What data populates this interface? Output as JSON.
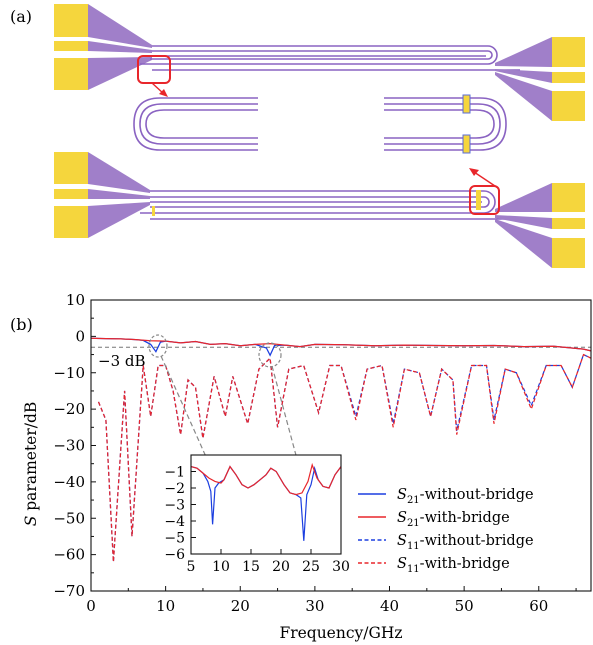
{
  "panel_a": {
    "label": "(a)",
    "colors": {
      "pad": "#f5d63d",
      "taper": "#a07fc9",
      "line": "#8a63c2",
      "highlight": "#e8262b"
    }
  },
  "panel_b": {
    "label": "(b)",
    "annotation": "−3 dB",
    "xlabel": "Frequency/GHz",
    "ylabel": "S parameter/dB",
    "legend": [
      {
        "sub": "21",
        "text": "-without-bridge",
        "color": "#1b3ee0",
        "dash": false
      },
      {
        "sub": "21",
        "text": "-with-bridge",
        "color": "#e8262b",
        "dash": false
      },
      {
        "sub": "11",
        "text": "-without-bridge",
        "color": "#1b3ee0",
        "dash": true
      },
      {
        "sub": "11",
        "text": "-with-bridge",
        "color": "#e8262b",
        "dash": true
      }
    ]
  },
  "chart_data": [
    {
      "type": "line",
      "xlabel": "Frequency/GHz",
      "ylabel": "S parameter/dB",
      "xlim": [
        0,
        67
      ],
      "ylim": [
        -70,
        10
      ],
      "xticks": [
        0,
        10,
        20,
        30,
        40,
        50,
        60
      ],
      "yticks": [
        10,
        0,
        -10,
        -20,
        -30,
        -40,
        -50,
        -60,
        -70
      ],
      "reference_line_db": -3,
      "series": [
        {
          "name": "S21-without-bridge",
          "color": "#1b3ee0",
          "style": "solid",
          "points": [
            [
              0,
              -0.5
            ],
            [
              2,
              -0.6
            ],
            [
              4,
              -0.7
            ],
            [
              6,
              -0.9
            ],
            [
              7,
              -1.1
            ],
            [
              8,
              -2.2
            ],
            [
              8.7,
              -4.2
            ],
            [
              9.3,
              -1.6
            ],
            [
              10,
              -1.3
            ],
            [
              12,
              -1.8
            ],
            [
              14,
              -1.4
            ],
            [
              16,
              -2.2
            ],
            [
              18,
              -2.0
            ],
            [
              20,
              -2.6
            ],
            [
              22,
              -2.2
            ],
            [
              23.5,
              -3.2
            ],
            [
              24,
              -5.2
            ],
            [
              24.6,
              -2.5
            ],
            [
              26,
              -2.4
            ],
            [
              28,
              -2.8
            ],
            [
              30,
              -2.2
            ],
            [
              34,
              -2.3
            ],
            [
              38,
              -2.6
            ],
            [
              42,
              -2.4
            ],
            [
              46,
              -2.5
            ],
            [
              50,
              -2.6
            ],
            [
              54,
              -2.5
            ],
            [
              58,
              -2.8
            ],
            [
              62,
              -2.7
            ],
            [
              66,
              -3.5
            ],
            [
              67,
              -4.0
            ]
          ]
        },
        {
          "name": "S21-with-bridge",
          "color": "#e8262b",
          "style": "solid",
          "points": [
            [
              0,
              -0.5
            ],
            [
              2,
              -0.6
            ],
            [
              4,
              -0.7
            ],
            [
              6,
              -0.9
            ],
            [
              8,
              -1.2
            ],
            [
              10,
              -1.3
            ],
            [
              12,
              -1.8
            ],
            [
              14,
              -1.4
            ],
            [
              16,
              -2.2
            ],
            [
              18,
              -2.0
            ],
            [
              20,
              -2.6
            ],
            [
              22,
              -2.2
            ],
            [
              24,
              -2.0
            ],
            [
              26,
              -2.4
            ],
            [
              28,
              -2.8
            ],
            [
              30,
              -2.2
            ],
            [
              34,
              -2.3
            ],
            [
              38,
              -2.6
            ],
            [
              42,
              -2.4
            ],
            [
              46,
              -2.5
            ],
            [
              50,
              -2.6
            ],
            [
              54,
              -2.5
            ],
            [
              58,
              -2.8
            ],
            [
              62,
              -2.7
            ],
            [
              66,
              -3.5
            ],
            [
              67,
              -4.0
            ]
          ]
        },
        {
          "name": "S11-without-bridge",
          "color": "#1b3ee0",
          "style": "dashed",
          "points": [
            [
              1,
              -18
            ],
            [
              2,
              -23
            ],
            [
              3,
              -62
            ],
            [
              4.5,
              -15
            ],
            [
              5.5,
              -55
            ],
            [
              7,
              -8
            ],
            [
              8,
              -22
            ],
            [
              9,
              -8
            ],
            [
              10,
              -8
            ],
            [
              11,
              -15
            ],
            [
              12,
              -27
            ],
            [
              13,
              -12
            ],
            [
              14,
              -14
            ],
            [
              15,
              -28
            ],
            [
              16.5,
              -11
            ],
            [
              18,
              -22
            ],
            [
              19,
              -11
            ],
            [
              21,
              -24
            ],
            [
              22.5,
              -9
            ],
            [
              24,
              -6
            ],
            [
              25,
              -25
            ],
            [
              26.5,
              -9
            ],
            [
              28.5,
              -8
            ],
            [
              30.5,
              -21
            ],
            [
              32,
              -8
            ],
            [
              33.5,
              -8
            ],
            [
              35.5,
              -22
            ],
            [
              37,
              -9
            ],
            [
              39,
              -8
            ],
            [
              40.5,
              -24
            ],
            [
              42,
              -9
            ],
            [
              44,
              -10
            ],
            [
              45.5,
              -22
            ],
            [
              47,
              -9
            ],
            [
              48.5,
              -12
            ],
            [
              49,
              -26
            ],
            [
              51,
              -8
            ],
            [
              53,
              -8
            ],
            [
              54,
              -23
            ],
            [
              55.5,
              -9
            ],
            [
              57,
              -10
            ],
            [
              59,
              -19
            ],
            [
              61,
              -8
            ],
            [
              63,
              -8
            ],
            [
              64.5,
              -14
            ],
            [
              66,
              -5
            ],
            [
              67,
              -6
            ]
          ]
        },
        {
          "name": "S11-with-bridge",
          "color": "#e8262b",
          "style": "dashed",
          "points": [
            [
              1,
              -18
            ],
            [
              2,
              -23
            ],
            [
              3,
              -62
            ],
            [
              4.5,
              -15
            ],
            [
              5.5,
              -55
            ],
            [
              7,
              -8
            ],
            [
              8,
              -22
            ],
            [
              9,
              -8
            ],
            [
              10,
              -8
            ],
            [
              11,
              -15
            ],
            [
              12,
              -27
            ],
            [
              13,
              -12
            ],
            [
              14,
              -14
            ],
            [
              15,
              -28
            ],
            [
              16.5,
              -11
            ],
            [
              18,
              -22
            ],
            [
              19,
              -11
            ],
            [
              21,
              -24
            ],
            [
              22.5,
              -9
            ],
            [
              24,
              -6
            ],
            [
              25,
              -25
            ],
            [
              26.5,
              -9
            ],
            [
              28.5,
              -8
            ],
            [
              30.5,
              -21
            ],
            [
              32,
              -8
            ],
            [
              33.5,
              -8
            ],
            [
              35.5,
              -23
            ],
            [
              37,
              -9
            ],
            [
              39,
              -8
            ],
            [
              40.5,
              -25
            ],
            [
              42,
              -9
            ],
            [
              44,
              -10
            ],
            [
              45.5,
              -22
            ],
            [
              47,
              -9
            ],
            [
              48.5,
              -12
            ],
            [
              49,
              -27
            ],
            [
              51,
              -8
            ],
            [
              53,
              -8
            ],
            [
              54,
              -24
            ],
            [
              55.5,
              -9
            ],
            [
              57,
              -10
            ],
            [
              59,
              -20
            ],
            [
              61,
              -8
            ],
            [
              63,
              -8
            ],
            [
              64.5,
              -14
            ],
            [
              66,
              -5
            ],
            [
              67,
              -6
            ]
          ]
        }
      ]
    },
    {
      "type": "line",
      "role": "inset",
      "xlim": [
        5,
        30
      ],
      "ylim": [
        -6,
        0
      ],
      "xticks": [
        5,
        10,
        15,
        20,
        25,
        30
      ],
      "yticks": [
        -1,
        -2,
        -3,
        -4,
        -5,
        -6
      ],
      "series": [
        {
          "name": "S21-without-bridge",
          "color": "#1b3ee0",
          "style": "solid",
          "points": [
            [
              5,
              -0.7
            ],
            [
              6,
              -0.8
            ],
            [
              7,
              -1.1
            ],
            [
              7.8,
              -1.6
            ],
            [
              8.3,
              -2.2
            ],
            [
              8.6,
              -4.2
            ],
            [
              9.0,
              -2.0
            ],
            [
              9.6,
              -1.7
            ],
            [
              10.5,
              -1.5
            ],
            [
              11.5,
              -0.7
            ],
            [
              12.5,
              -1.2
            ],
            [
              13.5,
              -1.8
            ],
            [
              14.5,
              -2.0
            ],
            [
              15.5,
              -1.8
            ],
            [
              16.5,
              -1.5
            ],
            [
              17.5,
              -1.2
            ],
            [
              18.3,
              -0.8
            ],
            [
              19.2,
              -1.0
            ],
            [
              20.5,
              -1.8
            ],
            [
              21.5,
              -2.3
            ],
            [
              22.5,
              -2.4
            ],
            [
              23.3,
              -2.6
            ],
            [
              23.8,
              -5.2
            ],
            [
              24.3,
              -2.4
            ],
            [
              25.0,
              -1.8
            ],
            [
              25.6,
              -0.8
            ],
            [
              26.2,
              -1.5
            ],
            [
              27.0,
              -1.9
            ],
            [
              28.0,
              -2.0
            ],
            [
              29.0,
              -1.2
            ],
            [
              30,
              -0.7
            ]
          ]
        },
        {
          "name": "S21-with-bridge",
          "color": "#e8262b",
          "style": "solid",
          "points": [
            [
              5,
              -0.7
            ],
            [
              6,
              -0.8
            ],
            [
              7,
              -1.1
            ],
            [
              8,
              -1.4
            ],
            [
              9,
              -1.6
            ],
            [
              10,
              -1.7
            ],
            [
              10.5,
              -1.5
            ],
            [
              11.5,
              -0.7
            ],
            [
              12.5,
              -1.2
            ],
            [
              13.5,
              -1.8
            ],
            [
              14.5,
              -2.0
            ],
            [
              15.5,
              -1.8
            ],
            [
              16.5,
              -1.5
            ],
            [
              17.5,
              -1.2
            ],
            [
              18.3,
              -0.8
            ],
            [
              19.2,
              -1.0
            ],
            [
              20.5,
              -1.8
            ],
            [
              21.5,
              -2.3
            ],
            [
              22.5,
              -2.4
            ],
            [
              23.5,
              -2.3
            ],
            [
              24.5,
              -1.6
            ],
            [
              25.2,
              -0.6
            ],
            [
              26.0,
              -1.4
            ],
            [
              27.0,
              -1.9
            ],
            [
              28.0,
              -2.0
            ],
            [
              29.0,
              -1.2
            ],
            [
              30,
              -0.7
            ]
          ]
        }
      ]
    }
  ]
}
